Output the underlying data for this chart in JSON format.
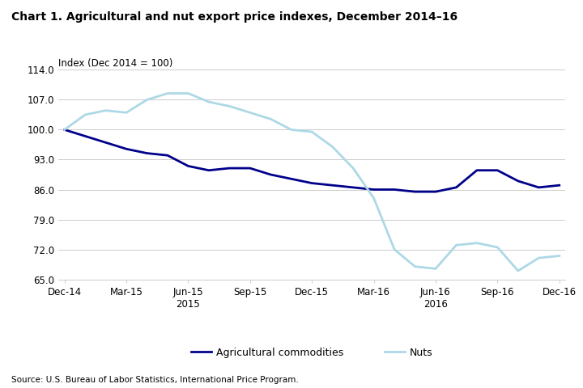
{
  "title": "Chart 1. Agricultural and nut export price indexes, December 2014–16",
  "ylabel": "Index (Dec 2014 = 100)",
  "source": "Source: U.S. Bureau of Labor Statistics, International Price Program.",
  "ylim": [
    65.0,
    114.0
  ],
  "yticks": [
    65.0,
    72.0,
    79.0,
    86.0,
    93.0,
    100.0,
    107.0,
    114.0
  ],
  "agri_color": "#00008B",
  "nuts_color": "#ADD8E6",
  "agri_label": "Agricultural commodities",
  "nuts_label": "Nuts",
  "quarter_positions": [
    0,
    3,
    6,
    9,
    12,
    15,
    18,
    21,
    24
  ],
  "xtick_labels": [
    "Dec-14",
    "Mar-15",
    "Jun-15\n2015",
    "Sep-15",
    "Dec-15",
    "Mar-16",
    "Jun-16\n2016",
    "Sep-16",
    "Dec-16"
  ],
  "agri_monthly": [
    100.0,
    98.5,
    97.0,
    95.5,
    94.5,
    94.0,
    91.5,
    90.5,
    91.0,
    91.0,
    89.5,
    88.5,
    87.5,
    87.0,
    86.5,
    86.0,
    86.0,
    85.5,
    85.5,
    86.5,
    90.5,
    90.5,
    88.0,
    86.5,
    87.0
  ],
  "nuts_monthly": [
    100.0,
    103.5,
    104.5,
    104.0,
    107.0,
    108.5,
    108.5,
    106.5,
    105.5,
    104.0,
    102.5,
    100.0,
    99.5,
    96.0,
    91.0,
    84.0,
    72.0,
    68.0,
    67.5,
    73.0,
    73.5,
    72.5,
    67.0,
    70.0,
    70.5
  ]
}
